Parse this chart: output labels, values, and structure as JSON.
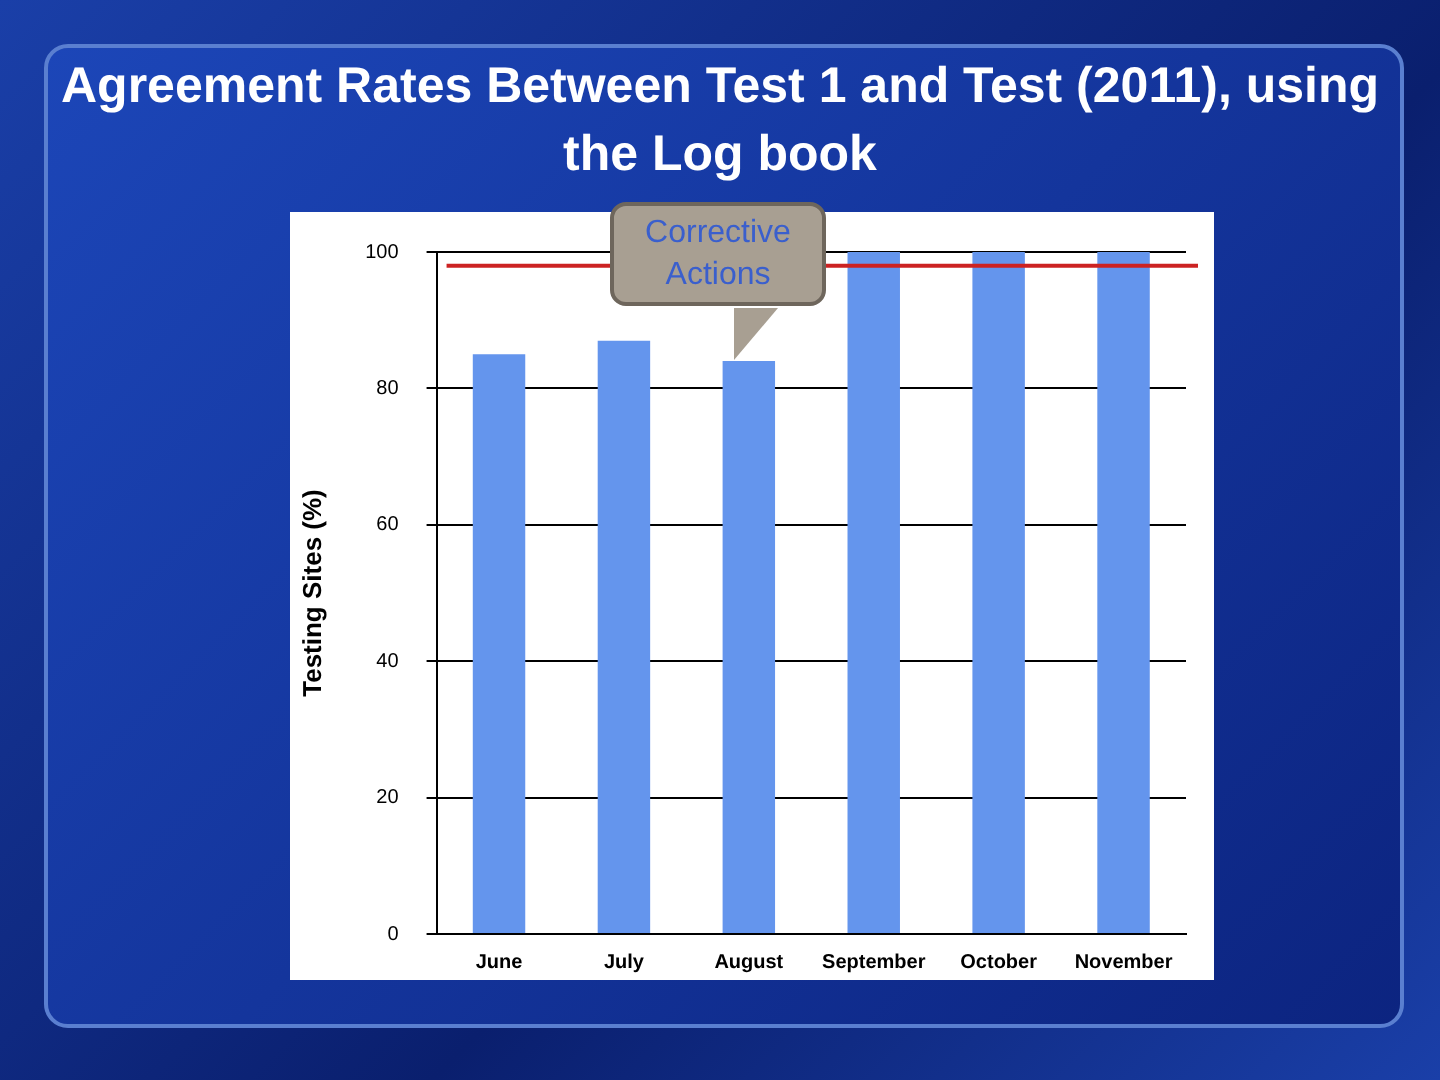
{
  "chart_data": {
    "type": "bar",
    "title": "Agreement Rates Between Test 1 and Test (2011), using the Log book",
    "ylabel": "Testing Sites (%)",
    "categories": [
      "June",
      "July",
      "August",
      "September",
      "October",
      "November"
    ],
    "values": [
      85,
      87,
      84,
      100,
      100,
      100
    ],
    "color": "#6495ed",
    "ylim": [
      0,
      100
    ],
    "yticks": [
      0,
      20,
      40,
      60,
      80,
      100
    ],
    "grid": "y",
    "legend": false,
    "ref_lines": [
      {
        "axis": "y",
        "value": 98,
        "color": "#cc2222"
      }
    ],
    "annotations": [
      "Corrective Actions"
    ]
  }
}
